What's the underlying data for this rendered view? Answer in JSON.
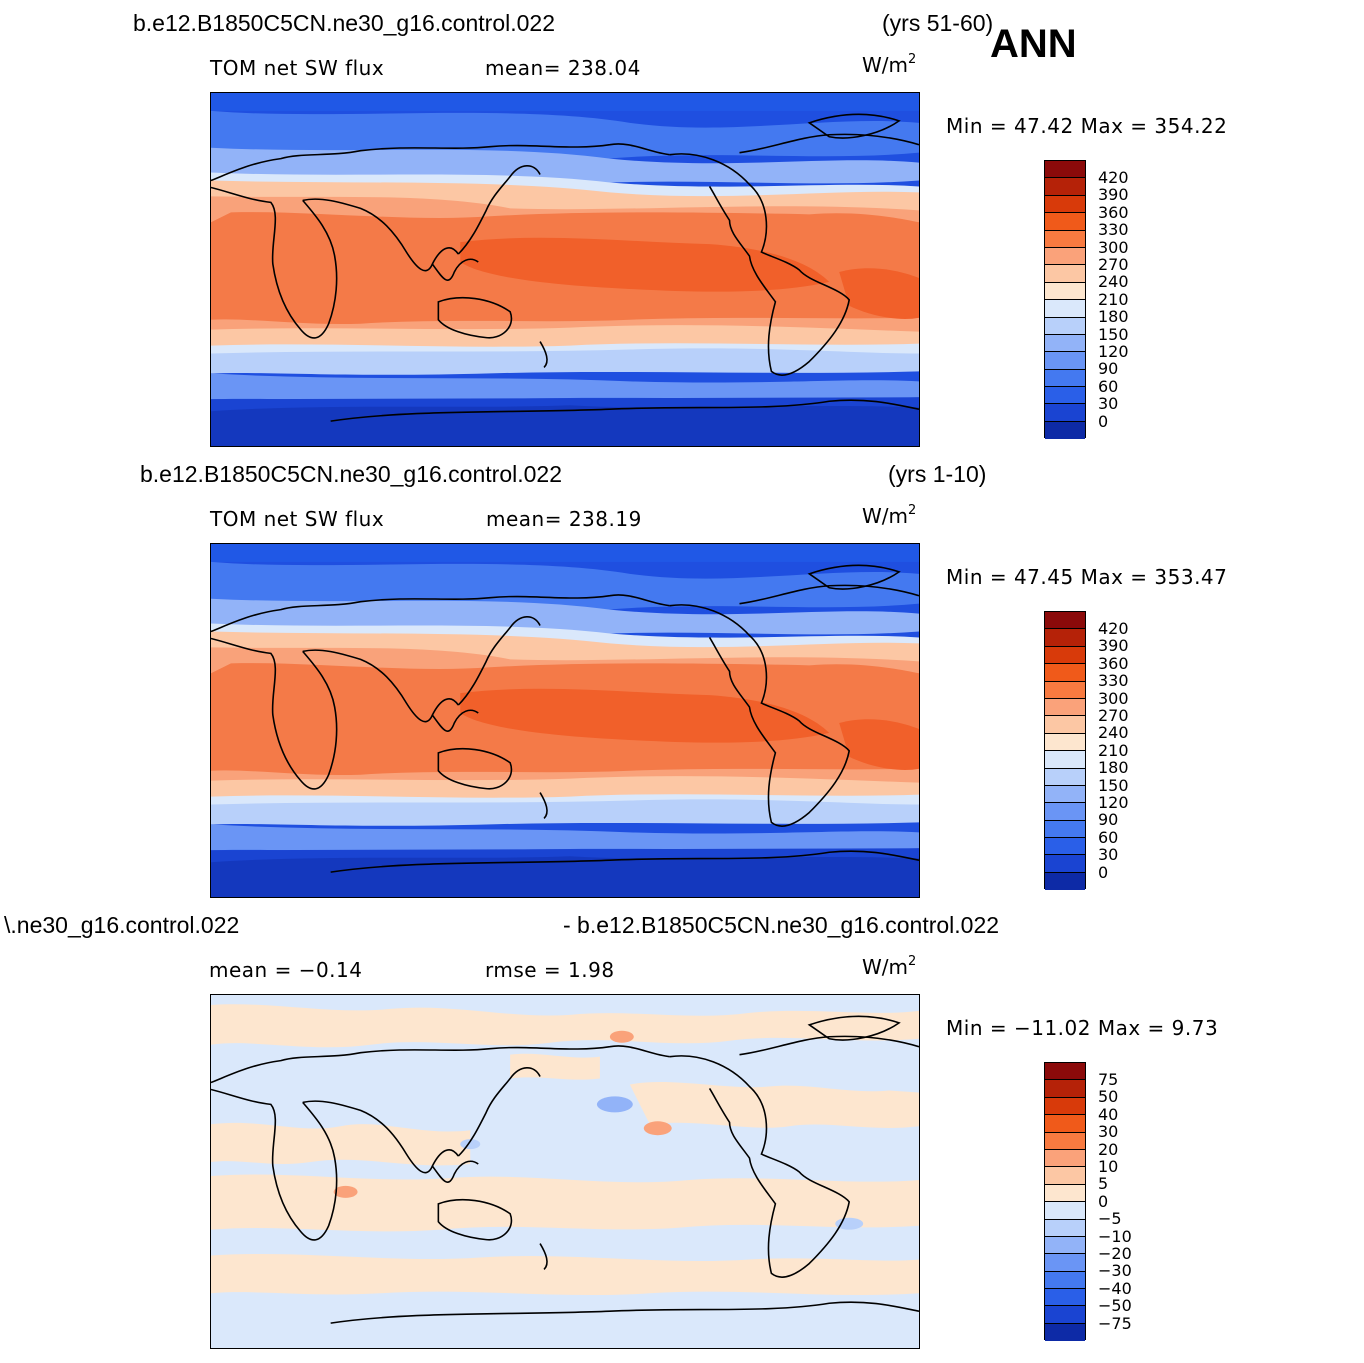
{
  "season": "ANN",
  "units": "W/m",
  "units_sup": "2",
  "panels": [
    {
      "case_title": "b.e12.B1850C5CN.ne30_g16.control.022",
      "years": "(yrs 51-60)",
      "left_label": "TOM  net  SW  flux",
      "mid_label": "mean=  238.04",
      "minmax": "Min  =    47.42  Max  =  354.22",
      "levels": [
        "420",
        "390",
        "360",
        "330",
        "300",
        "270",
        "240",
        "210",
        "180",
        "150",
        "120",
        "90",
        "60",
        "30",
        "0"
      ],
      "colors": [
        "#8b0a0a",
        "#b52208",
        "#d83a0a",
        "#f05a1a",
        "#f87a40",
        "#faa27a",
        "#fcc7a4",
        "#fde6cf",
        "#dae8fb",
        "#b8d0fa",
        "#92b3f8",
        "#6a95f5",
        "#4479f0",
        "#2a5fe8",
        "#1a44d2",
        "#0d2aa6"
      ]
    },
    {
      "case_title": "b.e12.B1850C5CN.ne30_g16.control.022",
      "years": "(yrs 1-10)",
      "left_label": "TOM  net  SW  flux",
      "mid_label": "mean=  238.19",
      "minmax": "Min  =    47.45  Max  =  353.47",
      "levels": [
        "420",
        "390",
        "360",
        "330",
        "300",
        "270",
        "240",
        "210",
        "180",
        "150",
        "120",
        "90",
        "60",
        "30",
        "0"
      ],
      "colors": [
        "#8b0a0a",
        "#b52208",
        "#d83a0a",
        "#f05a1a",
        "#f87a40",
        "#faa27a",
        "#fcc7a4",
        "#fde6cf",
        "#dae8fb",
        "#b8d0fa",
        "#92b3f8",
        "#6a95f5",
        "#4479f0",
        "#2a5fe8",
        "#1a44d2",
        "#0d2aa6"
      ]
    },
    {
      "case_title": "\\.ne30_g16.control.022",
      "years": "- b.e12.B1850C5CN.ne30_g16.control.022",
      "left_label": "mean  =    −0.14",
      "mid_label": "rmse  =     1.98",
      "minmax": "Min  =  −11.02  Max  =      9.73",
      "levels": [
        "75",
        "50",
        "40",
        "30",
        "20",
        "10",
        "5",
        "0",
        "−5",
        "−10",
        "−20",
        "−30",
        "−40",
        "−50",
        "−75"
      ],
      "colors": [
        "#8b0a0a",
        "#b52208",
        "#d83a0a",
        "#f05a1a",
        "#f87a40",
        "#faa27a",
        "#fcc7a4",
        "#fde6cf",
        "#dae8fb",
        "#b8d0fa",
        "#92b3f8",
        "#6a95f5",
        "#4479f0",
        "#2a5fe8",
        "#1a44d2",
        "#0d2aa6"
      ]
    }
  ]
}
